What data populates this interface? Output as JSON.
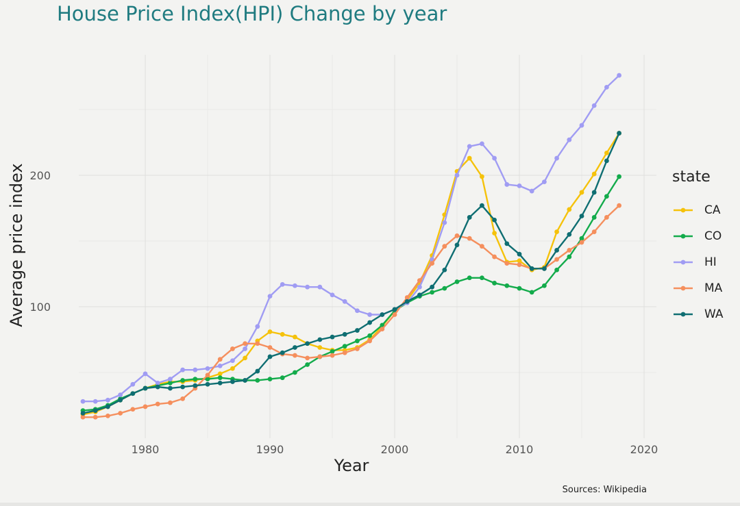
{
  "chart_data": {
    "type": "line",
    "title": "House Price Index(HPI) Change by year",
    "xlabel": "Year",
    "ylabel": "Average price index",
    "caption": "Sources: Wikipedia",
    "legend_title": "state",
    "legend_position": "right",
    "grid": true,
    "xlim": [
      1975,
      2020
    ],
    "ylim": [
      12,
      290
    ],
    "x_ticks": [
      1980,
      1990,
      2000,
      2010,
      2020
    ],
    "y_ticks": [
      100,
      200
    ],
    "x": [
      1975,
      1976,
      1977,
      1978,
      1979,
      1980,
      1981,
      1982,
      1983,
      1984,
      1985,
      1986,
      1987,
      1988,
      1989,
      1990,
      1991,
      1992,
      1993,
      1994,
      1995,
      1996,
      1997,
      1998,
      1999,
      2000,
      2001,
      2002,
      2003,
      2004,
      2005,
      2006,
      2007,
      2008,
      2009,
      2010,
      2011,
      2012,
      2013,
      2014,
      2015,
      2016,
      2017,
      2018
    ],
    "series": [
      {
        "name": "CA",
        "color": "#f5c20b",
        "values": [
          18,
          20,
          24,
          29,
          34,
          38,
          41,
          43,
          43,
          44,
          46,
          49,
          53,
          61,
          74,
          81,
          79,
          77,
          72,
          69,
          67,
          67,
          69,
          75,
          85,
          97,
          105,
          118,
          139,
          170,
          203,
          213,
          199,
          156,
          134,
          135,
          128,
          130,
          157,
          174,
          187,
          201,
          217,
          232
        ]
      },
      {
        "name": "CO",
        "color": "#13ab4b",
        "values": [
          21,
          22,
          25,
          30,
          34,
          38,
          40,
          42,
          44,
          45,
          45,
          46,
          45,
          44,
          44,
          45,
          46,
          50,
          56,
          62,
          66,
          70,
          74,
          78,
          86,
          97,
          103,
          108,
          111,
          114,
          119,
          122,
          122,
          118,
          116,
          114,
          111,
          116,
          128,
          138,
          152,
          168,
          184,
          199
        ]
      },
      {
        "name": "HI",
        "color": "#a09cf3",
        "values": [
          28,
          28,
          29,
          33,
          41,
          49,
          42,
          45,
          52,
          52,
          53,
          55,
          59,
          68,
          85,
          108,
          117,
          116,
          115,
          115,
          109,
          104,
          97,
          94,
          94,
          98,
          103,
          115,
          136,
          164,
          200,
          222,
          224,
          213,
          193,
          192,
          188,
          195,
          213,
          227,
          238,
          253,
          267,
          276
        ]
      },
      {
        "name": "MA",
        "color": "#f58f5d",
        "values": [
          16,
          16,
          17,
          19,
          22,
          24,
          26,
          27,
          30,
          38,
          48,
          60,
          68,
          72,
          72,
          69,
          64,
          63,
          61,
          62,
          63,
          65,
          68,
          74,
          83,
          94,
          107,
          120,
          133,
          146,
          154,
          152,
          146,
          138,
          133,
          132,
          129,
          129,
          136,
          143,
          149,
          157,
          168,
          177
        ]
      },
      {
        "name": "WA",
        "color": "#0f6e72",
        "values": [
          19,
          21,
          24,
          29,
          34,
          38,
          39,
          38,
          39,
          40,
          41,
          42,
          43,
          44,
          51,
          62,
          65,
          69,
          72,
          75,
          77,
          79,
          82,
          88,
          94,
          98,
          104,
          109,
          115,
          128,
          147,
          168,
          177,
          166,
          148,
          140,
          129,
          129,
          143,
          155,
          169,
          187,
          211,
          232
        ]
      }
    ]
  }
}
